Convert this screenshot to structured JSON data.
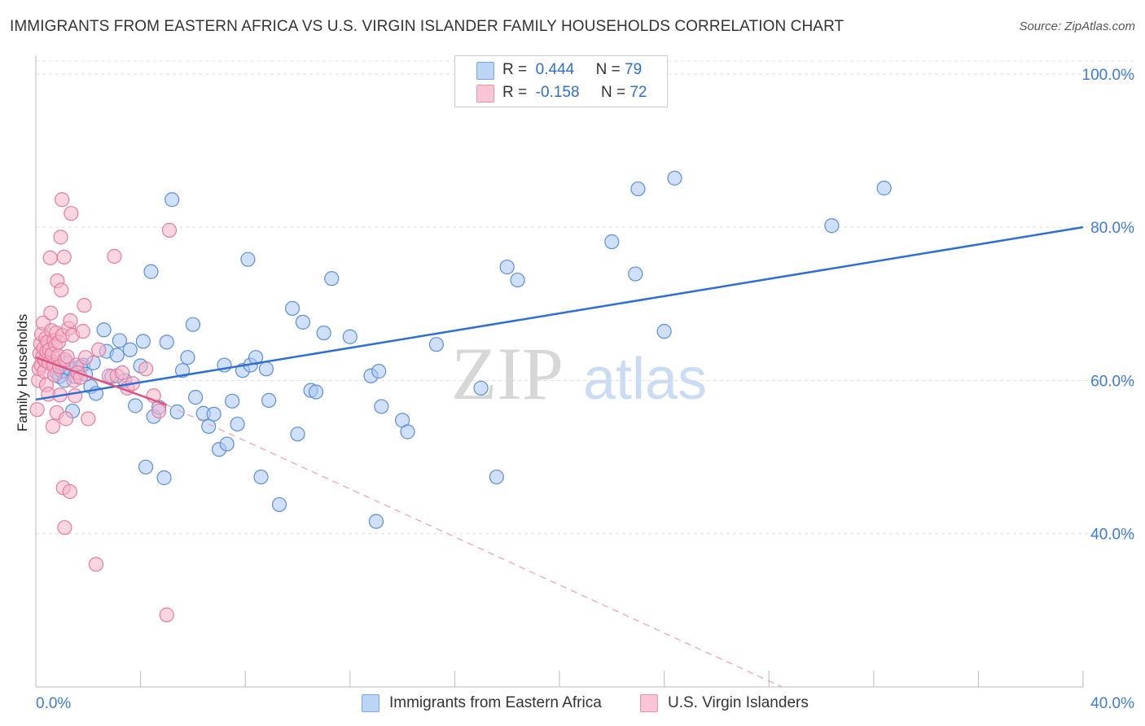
{
  "title": "IMMIGRANTS FROM EASTERN AFRICA VS U.S. VIRGIN ISLANDER FAMILY HOUSEHOLDS CORRELATION CHART",
  "source": "Source: ZipAtlas.com",
  "watermark": {
    "zip": "ZIP",
    "atlas": "atlas"
  },
  "legend_top": [
    {
      "r_label": "R =",
      "r_value": "0.444",
      "n_label": "N =",
      "n_value": "79",
      "color": "#a9c6f2"
    },
    {
      "r_label": "R =",
      "r_value": "-0.158",
      "n_label": "N =",
      "n_value": "72",
      "color": "#f5b5c9"
    }
  ],
  "chart_data": {
    "type": "scatter",
    "xlabel": "",
    "ylabel": "Family Households",
    "xlim": [
      0,
      40
    ],
    "ylim": [
      20,
      102
    ],
    "x_tick_labels": [
      "0.0%",
      "40.0%"
    ],
    "y_ticks": [
      40,
      60,
      80,
      100
    ],
    "y_tick_labels": [
      "40.0%",
      "60.0%",
      "80.0%",
      "100.0%"
    ],
    "grid": true,
    "legend_position": "bottom",
    "series": [
      {
        "name": "Immigrants from Eastern Africa",
        "color": "#a9c6f2",
        "edge": "#5b8fd8",
        "trend": {
          "x": [
            0,
            40
          ],
          "y": [
            57.5,
            80.0
          ],
          "color": "#2f6fcf"
        },
        "points": [
          [
            0.6,
            62.5
          ],
          [
            0.8,
            61.0
          ],
          [
            0.9,
            60.5
          ],
          [
            1.0,
            61.2
          ],
          [
            1.1,
            60.0
          ],
          [
            1.2,
            62.3
          ],
          [
            1.3,
            61.5
          ],
          [
            1.4,
            56.0
          ],
          [
            1.5,
            60.5
          ],
          [
            1.7,
            61.8
          ],
          [
            1.8,
            62.0
          ],
          [
            1.9,
            60.8
          ],
          [
            2.1,
            59.2
          ],
          [
            2.2,
            62.3
          ],
          [
            2.3,
            58.3
          ],
          [
            2.6,
            66.6
          ],
          [
            2.7,
            63.8
          ],
          [
            2.9,
            60.5
          ],
          [
            3.1,
            63.3
          ],
          [
            3.2,
            65.2
          ],
          [
            3.4,
            60.0
          ],
          [
            3.6,
            64.0
          ],
          [
            3.8,
            56.7
          ],
          [
            4.0,
            61.9
          ],
          [
            4.1,
            65.1
          ],
          [
            4.2,
            48.7
          ],
          [
            4.4,
            74.2
          ],
          [
            4.5,
            55.3
          ],
          [
            4.7,
            56.5
          ],
          [
            4.9,
            47.3
          ],
          [
            5.0,
            65.0
          ],
          [
            5.2,
            83.6
          ],
          [
            5.4,
            55.9
          ],
          [
            5.6,
            61.3
          ],
          [
            5.8,
            63.0
          ],
          [
            6.0,
            67.3
          ],
          [
            6.1,
            57.8
          ],
          [
            6.4,
            55.7
          ],
          [
            6.6,
            54.0
          ],
          [
            6.8,
            55.6
          ],
          [
            7.0,
            51.0
          ],
          [
            7.2,
            62.0
          ],
          [
            7.3,
            51.7
          ],
          [
            7.5,
            57.3
          ],
          [
            7.7,
            54.3
          ],
          [
            7.9,
            61.3
          ],
          [
            8.1,
            75.8
          ],
          [
            8.2,
            62.0
          ],
          [
            8.4,
            63.0
          ],
          [
            8.6,
            47.4
          ],
          [
            8.8,
            61.5
          ],
          [
            8.9,
            57.4
          ],
          [
            9.3,
            43.8
          ],
          [
            9.8,
            69.4
          ],
          [
            10.0,
            53.0
          ],
          [
            10.2,
            67.6
          ],
          [
            10.5,
            58.7
          ],
          [
            10.7,
            58.5
          ],
          [
            11.0,
            66.2
          ],
          [
            11.3,
            73.3
          ],
          [
            12.0,
            65.7
          ],
          [
            12.8,
            60.6
          ],
          [
            13.1,
            61.2
          ],
          [
            13.0,
            41.6
          ],
          [
            13.2,
            56.6
          ],
          [
            14.0,
            54.8
          ],
          [
            14.2,
            53.3
          ],
          [
            15.3,
            64.7
          ],
          [
            17.0,
            59.0
          ],
          [
            17.6,
            47.4
          ],
          [
            18.0,
            74.8
          ],
          [
            18.4,
            73.1
          ],
          [
            22.0,
            78.1
          ],
          [
            22.9,
            73.9
          ],
          [
            23.0,
            85.0
          ],
          [
            24.0,
            66.4
          ],
          [
            24.4,
            86.4
          ],
          [
            30.4,
            80.2
          ],
          [
            32.4,
            85.1
          ]
        ]
      },
      {
        "name": "U.S. Virgin Islanders",
        "color": "#f5b5c9",
        "edge": "#e57ca0",
        "trend": {
          "x": [
            0,
            5
          ],
          "y": [
            63.0,
            56.8
          ],
          "color": "#e0527f"
        },
        "trend_ext": {
          "x": [
            5,
            28.5
          ],
          "y": [
            56.8,
            20.0
          ],
          "color": "#e8a0b6"
        },
        "points": [
          [
            0.05,
            56.2
          ],
          [
            0.1,
            60.0
          ],
          [
            0.12,
            61.5
          ],
          [
            0.15,
            63.5
          ],
          [
            0.18,
            64.8
          ],
          [
            0.2,
            62.0
          ],
          [
            0.22,
            66.0
          ],
          [
            0.25,
            63.0
          ],
          [
            0.28,
            67.5
          ],
          [
            0.3,
            64.2
          ],
          [
            0.33,
            61.2
          ],
          [
            0.35,
            62.6
          ],
          [
            0.38,
            65.5
          ],
          [
            0.4,
            59.4
          ],
          [
            0.42,
            63.8
          ],
          [
            0.45,
            65.0
          ],
          [
            0.48,
            58.2
          ],
          [
            0.5,
            62.3
          ],
          [
            0.52,
            64.0
          ],
          [
            0.55,
            76.0
          ],
          [
            0.57,
            68.8
          ],
          [
            0.6,
            66.5
          ],
          [
            0.62,
            63.4
          ],
          [
            0.65,
            54.0
          ],
          [
            0.68,
            62.0
          ],
          [
            0.7,
            65.2
          ],
          [
            0.72,
            60.7
          ],
          [
            0.75,
            64.6
          ],
          [
            0.78,
            66.2
          ],
          [
            0.8,
            55.8
          ],
          [
            0.82,
            73.0
          ],
          [
            0.85,
            63.2
          ],
          [
            0.87,
            65.0
          ],
          [
            0.9,
            61.8
          ],
          [
            0.92,
            58.1
          ],
          [
            0.95,
            78.7
          ],
          [
            0.97,
            71.8
          ],
          [
            1.0,
            83.6
          ],
          [
            1.02,
            65.9
          ],
          [
            1.05,
            46.0
          ],
          [
            1.08,
            76.1
          ],
          [
            1.1,
            40.8
          ],
          [
            1.12,
            62.7
          ],
          [
            1.15,
            55.0
          ],
          [
            1.2,
            63.1
          ],
          [
            1.25,
            66.8
          ],
          [
            1.3,
            45.5
          ],
          [
            1.32,
            67.8
          ],
          [
            1.35,
            81.8
          ],
          [
            1.4,
            65.9
          ],
          [
            1.45,
            60.0
          ],
          [
            1.5,
            58.0
          ],
          [
            1.55,
            62.0
          ],
          [
            1.6,
            61.0
          ],
          [
            1.7,
            60.4
          ],
          [
            1.8,
            66.4
          ],
          [
            1.85,
            69.8
          ],
          [
            1.9,
            63.0
          ],
          [
            2.0,
            55.0
          ],
          [
            2.3,
            36.0
          ],
          [
            2.4,
            64.0
          ],
          [
            2.8,
            60.6
          ],
          [
            3.0,
            76.2
          ],
          [
            3.1,
            60.6
          ],
          [
            3.3,
            61.0
          ],
          [
            3.5,
            59.0
          ],
          [
            3.7,
            59.6
          ],
          [
            4.2,
            61.5
          ],
          [
            4.5,
            58.0
          ],
          [
            4.7,
            56.0
          ],
          [
            5.0,
            29.4
          ],
          [
            5.1,
            79.6
          ]
        ]
      }
    ]
  }
}
